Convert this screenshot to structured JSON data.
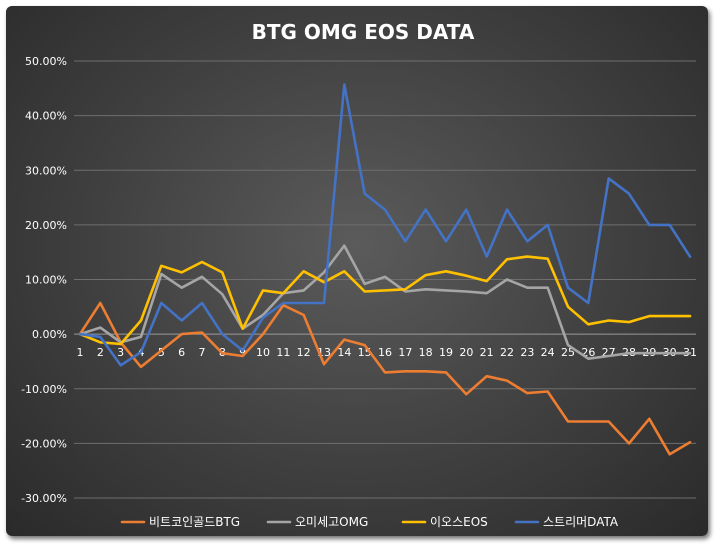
{
  "chart_data": {
    "type": "line",
    "title": "BTG OMG EOS DATA",
    "xlabel": "",
    "ylabel": "",
    "ylim": [
      -30,
      50
    ],
    "y_tick_labels": [
      "50.00%",
      "40.00%",
      "30.00%",
      "20.00%",
      "10.00%",
      "0.00%",
      "-10.00%",
      "-20.00%",
      "-30.00%"
    ],
    "y_tick_values": [
      50,
      40,
      30,
      20,
      10,
      0,
      -10,
      -20,
      -30
    ],
    "categories": [
      "1",
      "2",
      "3",
      "4",
      "5",
      "6",
      "7",
      "8",
      "9",
      "10",
      "11",
      "12",
      "13",
      "14",
      "15",
      "16",
      "17",
      "18",
      "19",
      "20",
      "21",
      "22",
      "23",
      "24",
      "25",
      "26",
      "27",
      "28",
      "29",
      "30",
      "31"
    ],
    "grid": true,
    "legend_position": "bottom",
    "series": [
      {
        "name": "비트코인골드BTG",
        "color": "#ed7d31",
        "values": [
          0,
          5.7,
          -1.5,
          -6,
          -3,
          0,
          0.3,
          -3.5,
          -4,
          0,
          5.3,
          3.5,
          -5.5,
          -1,
          -2,
          -7,
          -6.8,
          -6.8,
          -7,
          -11,
          -7.7,
          -8.5,
          -10.8,
          -10.5,
          -16,
          -16,
          -16,
          -20,
          -15.5,
          -22,
          -19.8
        ]
      },
      {
        "name": "오미세고OMG",
        "color": "#a5a5a5",
        "values": [
          0,
          1.2,
          -1.5,
          -0.5,
          11,
          8.5,
          10.5,
          7.3,
          1,
          3.5,
          7.5,
          8,
          11.3,
          16.2,
          9.2,
          10.5,
          7.8,
          8.2,
          8,
          7.8,
          7.5,
          10,
          8.5,
          8.5,
          -2,
          -4.5,
          -4,
          -3.5,
          -3.5,
          -3.5,
          -3.5
        ]
      },
      {
        "name": "이오스EOS",
        "color": "#ffc000",
        "values": [
          0,
          -1.5,
          -1.8,
          2.5,
          12.5,
          11.3,
          13.2,
          11.3,
          1,
          8,
          7.5,
          11.5,
          9.5,
          11.5,
          7.8,
          8,
          8.2,
          10.8,
          11.5,
          10.7,
          9.7,
          13.7,
          14.2,
          13.8,
          5,
          1.8,
          2.5,
          2.2,
          3.3,
          3.3,
          3.3
        ]
      },
      {
        "name": "스트리머DATA",
        "color": "#4472c4",
        "values": [
          0,
          -0.5,
          -5.7,
          -3.3,
          5.7,
          2.5,
          5.7,
          0,
          -3,
          3,
          5.7,
          5.7,
          5.7,
          45.7,
          25.7,
          22.8,
          17,
          22.8,
          17,
          22.8,
          14.2,
          22.8,
          17,
          20,
          8.5,
          5.7,
          28.5,
          25.7,
          20,
          20,
          14.2
        ]
      }
    ]
  }
}
